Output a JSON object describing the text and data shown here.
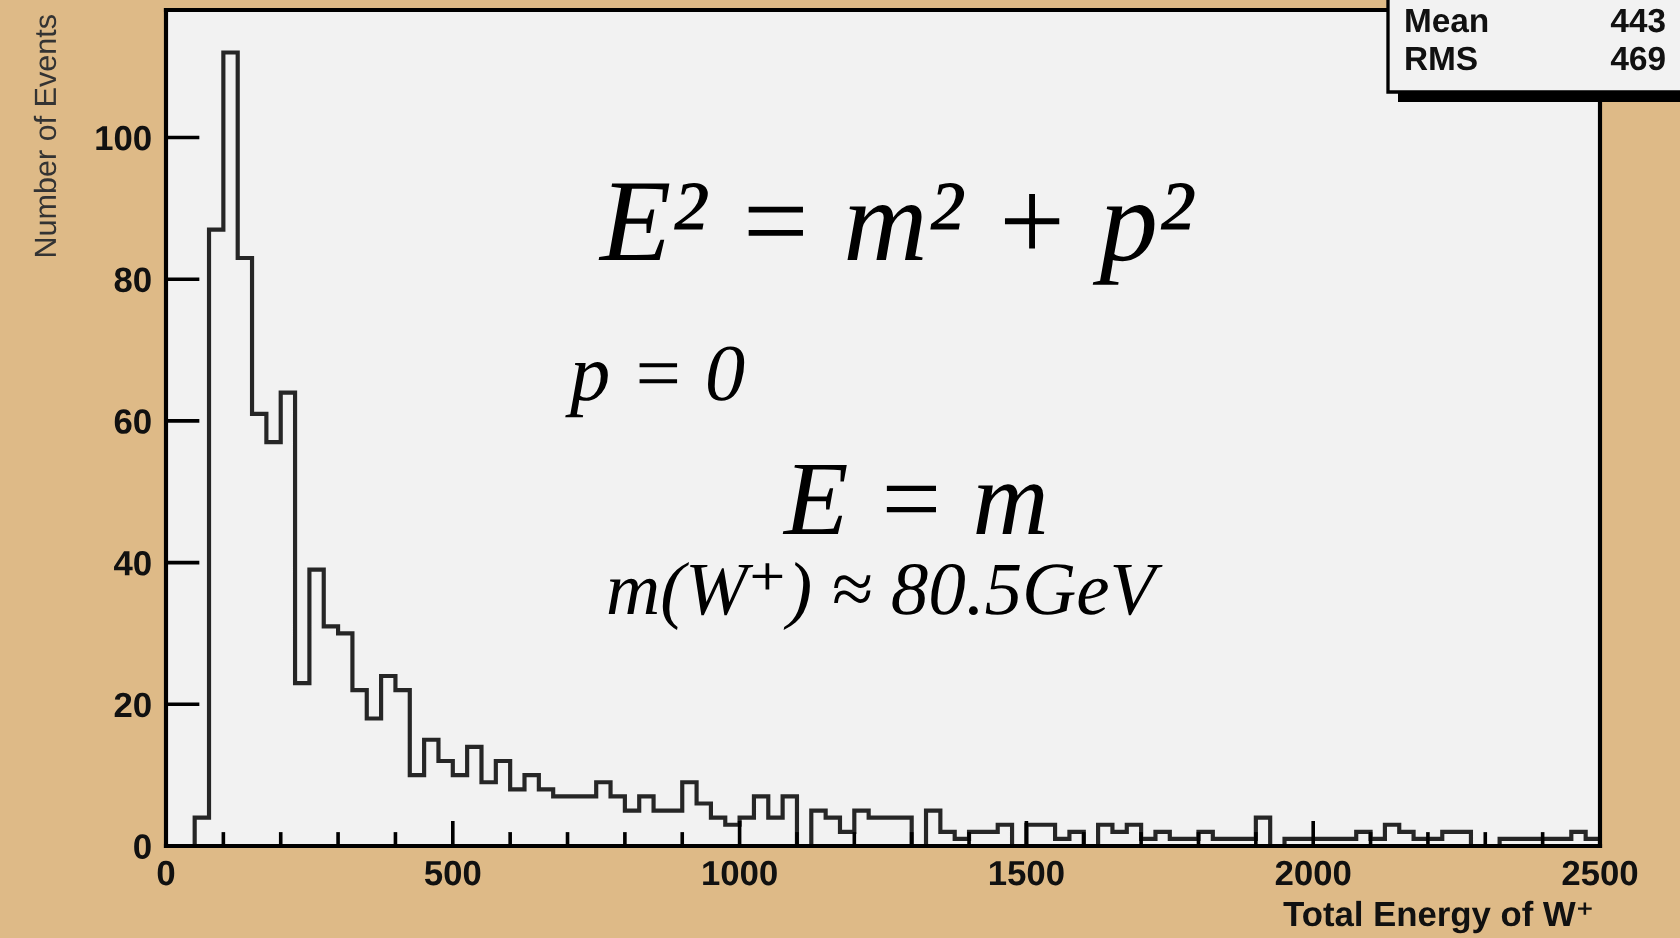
{
  "chart_data": {
    "type": "histogram",
    "xlabel": "Total Energy of W⁺",
    "ylabel": "Number of Events",
    "color": "#262626",
    "bins": [
      0,
      25,
      50,
      75,
      100,
      125,
      150,
      175,
      200,
      225,
      250,
      275,
      300,
      325,
      350,
      375,
      400,
      425,
      450,
      475,
      500,
      525,
      550,
      575,
      600,
      625,
      650,
      675,
      700,
      725,
      750,
      775,
      800,
      825,
      850,
      875,
      900,
      925,
      950,
      975,
      1000,
      1025,
      1050,
      1075,
      1100,
      1125,
      1150,
      1175,
      1200,
      1225,
      1250,
      1275,
      1300,
      1325,
      1350,
      1375,
      1400,
      1425,
      1450,
      1475,
      1500,
      1525,
      1550,
      1575,
      1600,
      1625,
      1650,
      1675,
      1700,
      1725,
      1750,
      1775,
      1800,
      1825,
      1850,
      1875,
      1900,
      1925,
      1950,
      1975,
      2000,
      2025,
      2050,
      2075,
      2100,
      2125,
      2150,
      2175,
      2200,
      2225,
      2250,
      2275,
      2300,
      2325,
      2350,
      2375,
      2400,
      2425,
      2450,
      2475,
      2500
    ],
    "values": [
      0,
      0,
      4,
      87,
      112,
      83,
      61,
      57,
      64,
      23,
      39,
      31,
      30,
      22,
      18,
      24,
      22,
      10,
      15,
      12,
      10,
      14,
      9,
      12,
      8,
      10,
      8,
      7,
      7,
      7,
      9,
      7,
      5,
      7,
      5,
      5,
      9,
      6,
      4,
      3,
      4,
      7,
      4,
      7,
      0,
      5,
      4,
      2,
      5,
      4,
      4,
      4,
      0,
      5,
      2,
      1,
      2,
      2,
      3,
      0,
      3,
      3,
      1,
      2,
      0,
      3,
      2,
      3,
      1,
      2,
      1,
      1,
      2,
      1,
      1,
      1,
      4,
      0,
      1,
      1,
      1,
      1,
      1,
      2,
      1,
      3,
      2,
      1,
      1,
      2,
      2,
      0,
      0,
      1,
      1,
      1,
      1,
      1,
      2,
      1
    ],
    "xlim": [
      0,
      2500
    ],
    "ylim": [
      0,
      118
    ],
    "xticks": [
      0,
      {
        "value": 100,
        "label": null
      },
      {
        "value": 200,
        "label": null
      },
      {
        "value": 300,
        "label": null
      },
      {
        "value": 400,
        "label": null
      },
      500,
      {
        "value": 600,
        "label": null
      },
      {
        "value": 700,
        "label": null
      },
      {
        "value": 800,
        "label": null
      },
      {
        "value": 900,
        "label": null
      },
      1000,
      {
        "value": 1100,
        "label": null
      },
      {
        "value": 1200,
        "label": null
      },
      {
        "value": 1300,
        "label": null
      },
      {
        "value": 1400,
        "label": null
      },
      1500,
      {
        "value": 1600,
        "label": null
      },
      {
        "value": 1700,
        "label": null
      },
      {
        "value": 1800,
        "label": null
      },
      {
        "value": 1900,
        "label": null
      },
      2000,
      {
        "value": 2100,
        "label": null
      },
      {
        "value": 2200,
        "label": null
      },
      {
        "value": 2300,
        "label": null
      },
      {
        "value": 2400,
        "label": null
      },
      2500
    ],
    "yticks": [
      0,
      20,
      40,
      60,
      80,
      100
    ],
    "annotations": [
      "E² = m² + p²",
      "p = 0",
      "E = m",
      "m(W⁺) ≈ 80.5GeV",
      "Mean",
      "443",
      "RMS",
      "469"
    ]
  }
}
